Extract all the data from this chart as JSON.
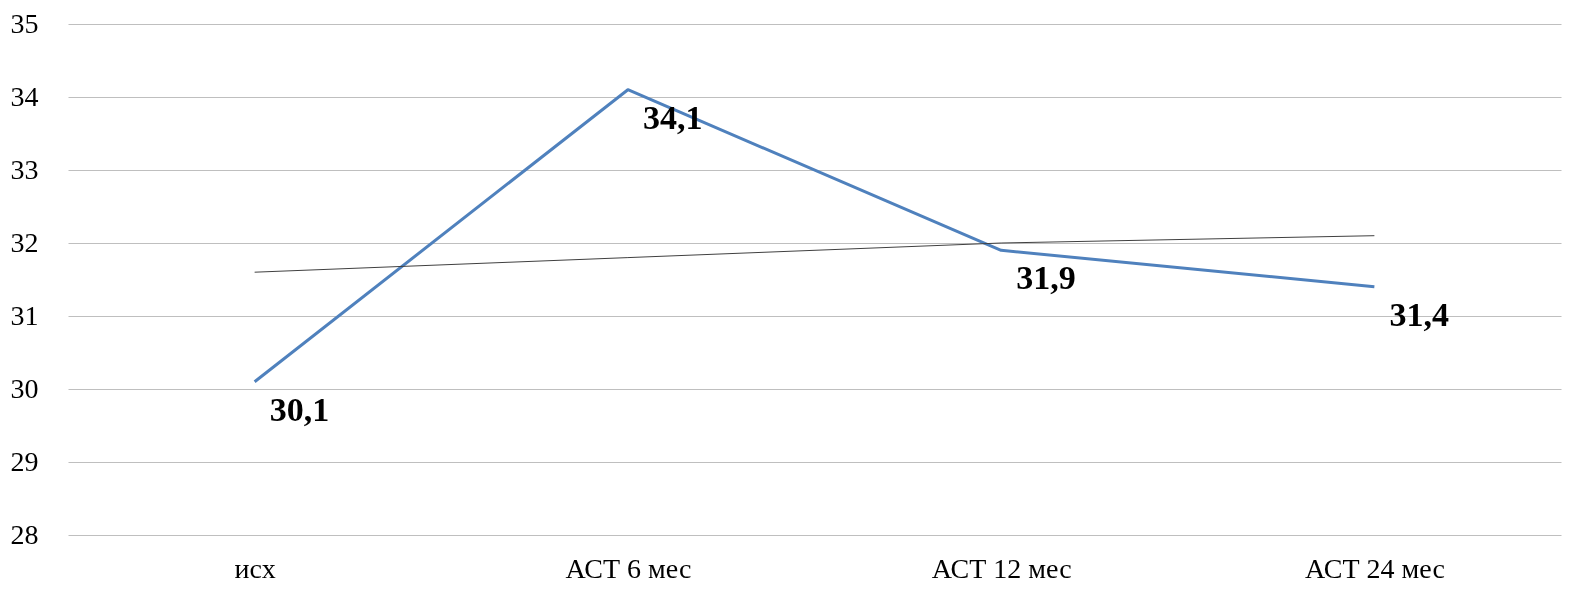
{
  "chart_data": {
    "type": "line",
    "categories": [
      "исх",
      "АСТ 6 мес",
      "АСТ 12 мес",
      "АСТ 24 мес"
    ],
    "series": [
      {
        "color": "#4f81bd",
        "values": [
          30.1,
          34.1,
          31.9,
          31.4
        ],
        "value_labels": [
          "30,1",
          "34,1",
          "31,9",
          "31,4"
        ]
      },
      {
        "type": "line",
        "color": "#404040",
        "values": [
          31.6,
          31.8,
          32.0,
          32.1
        ]
      }
    ],
    "ylim": [
      28,
      35
    ],
    "yticks": [
      28,
      29,
      30,
      31,
      32,
      33,
      34,
      35
    ],
    "grid": "y",
    "marker": "none",
    "line_style": "solid"
  }
}
